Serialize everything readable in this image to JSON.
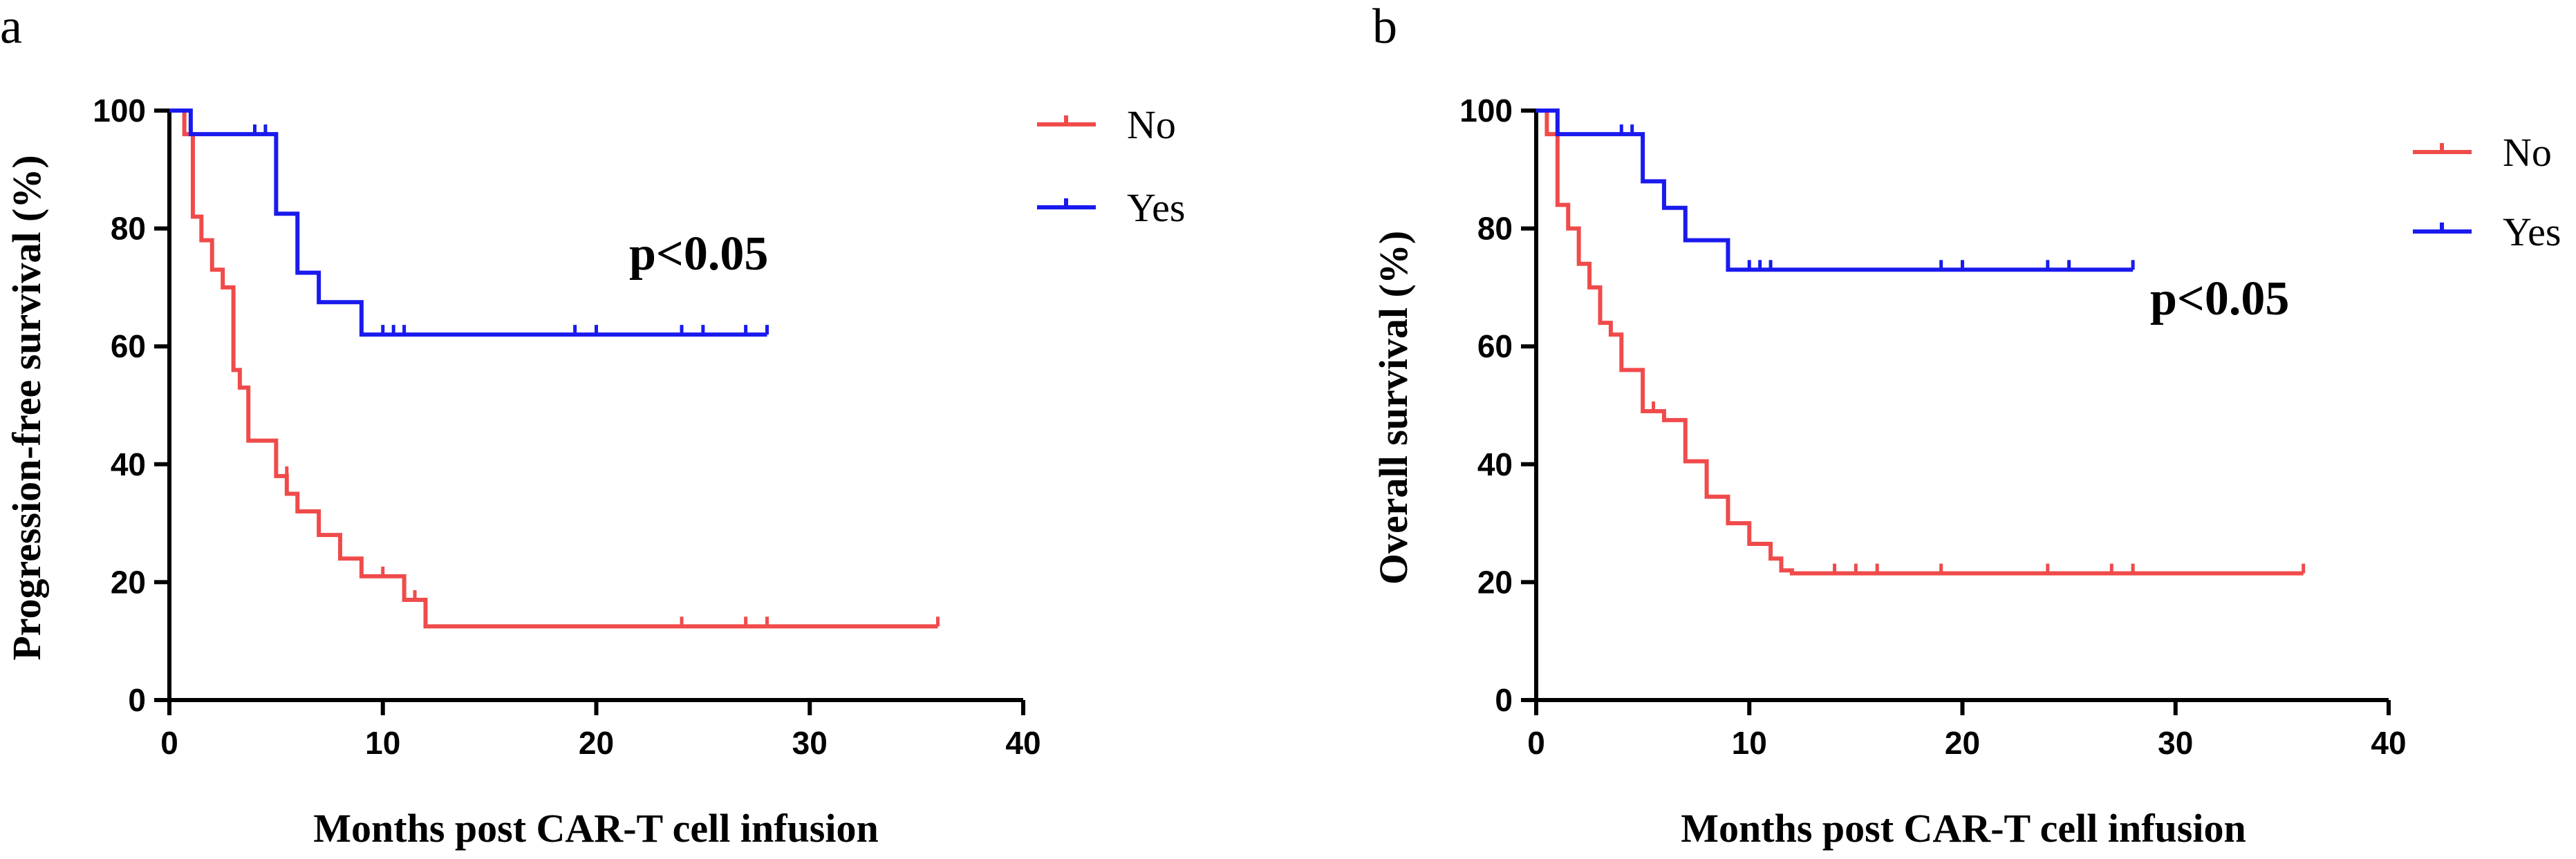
{
  "chart_data": [
    {
      "type": "line",
      "panel": "a",
      "xlabel": "Months post CAR-T cell infusion",
      "ylabel": "Progression-free survival (%)",
      "xlim": [
        0,
        40
      ],
      "ylim": [
        0,
        100
      ],
      "xticks": [
        0,
        10,
        20,
        30,
        40
      ],
      "yticks": [
        0,
        20,
        40,
        60,
        80,
        100
      ],
      "annotation": "p<0.05",
      "legend_position": "top-right",
      "series": [
        {
          "name": "No",
          "color": "#f04b4b",
          "x": [
            0,
            0.7,
            1.1,
            1.5,
            2.0,
            2.5,
            3.0,
            3.3,
            3.7,
            4.0,
            5.0,
            5.5,
            6.0,
            7.0,
            8.0,
            9.0,
            11.0,
            12.0,
            36.0
          ],
          "y": [
            100,
            96,
            82,
            78,
            73,
            70,
            56,
            53,
            44,
            44,
            38,
            35,
            32,
            28,
            24,
            21,
            17,
            12.5,
            12.5
          ],
          "censored_x": [
            5.5,
            10.0,
            11.5,
            24.0,
            27.0,
            28.0,
            36.0
          ],
          "censored_y": [
            38,
            21,
            17,
            12.5,
            12.5,
            12.5,
            12.5
          ]
        },
        {
          "name": "Yes",
          "color": "#1a1aee",
          "x": [
            0,
            1.0,
            5.0,
            6.0,
            7.0,
            9.0,
            28.0
          ],
          "y": [
            100,
            96,
            82.5,
            72.5,
            67.5,
            62,
            62
          ],
          "censored_x": [
            1.0,
            4.0,
            4.5,
            10.0,
            10.5,
            11.0,
            19.0,
            20.0,
            24.0,
            25.0,
            27.0,
            28.0
          ],
          "censored_y": [
            96,
            96,
            96,
            62,
            62,
            62,
            62,
            62,
            62,
            62,
            62,
            62
          ]
        }
      ]
    },
    {
      "type": "line",
      "panel": "b",
      "xlabel": "Months post CAR-T cell infusion",
      "ylabel": "Overall survival (%)",
      "xlim": [
        0,
        40
      ],
      "ylim": [
        0,
        100
      ],
      "xticks": [
        0,
        10,
        20,
        30,
        40
      ],
      "yticks": [
        0,
        20,
        40,
        60,
        80,
        100
      ],
      "annotation": "p<0.05",
      "legend_position": "top-right",
      "series": [
        {
          "name": "No",
          "color": "#f04b4b",
          "x": [
            0,
            0.5,
            1.0,
            1.5,
            2.0,
            2.5,
            3.0,
            3.5,
            4.0,
            5.0,
            5.5,
            6.0,
            7.0,
            8.0,
            9.0,
            10.0,
            11.0,
            11.5,
            12.0,
            36.0
          ],
          "y": [
            100,
            96,
            84,
            80,
            74,
            70,
            64,
            62,
            56,
            49,
            49,
            47.5,
            40.5,
            34.5,
            30,
            26.5,
            24,
            22,
            21.5,
            21.5
          ],
          "censored_x": [
            5.5,
            14.0,
            15.0,
            16.0,
            19.0,
            24.0,
            27.0,
            28.0,
            36.0
          ],
          "censored_y": [
            49,
            21.5,
            21.5,
            21.5,
            21.5,
            21.5,
            21.5,
            21.5,
            21.5
          ]
        },
        {
          "name": "Yes",
          "color": "#1a1aee",
          "x": [
            0,
            1.0,
            5.0,
            6.0,
            7.0,
            9.0,
            28.0
          ],
          "y": [
            100,
            96,
            88,
            83.5,
            78,
            73,
            73
          ],
          "censored_x": [
            1.0,
            4.0,
            4.5,
            10.0,
            10.5,
            11.0,
            19.0,
            20.0,
            24.0,
            25.0,
            28.0
          ],
          "censored_y": [
            96,
            96,
            96,
            73,
            73,
            73,
            73,
            73,
            73,
            73,
            73
          ]
        }
      ]
    }
  ]
}
